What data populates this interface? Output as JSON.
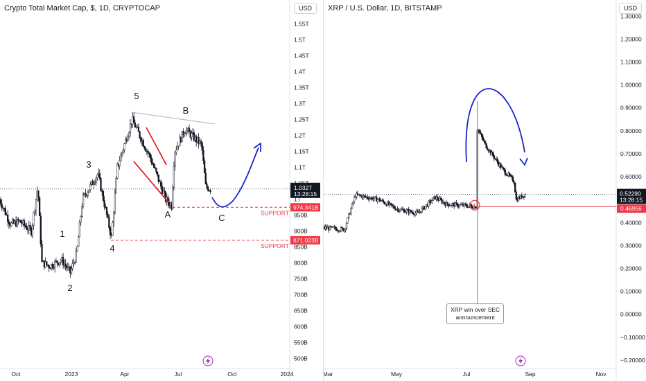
{
  "left": {
    "title": "Crypto Total Market Cap, $, 1D, CRYPTOCAP",
    "currency": "USD",
    "y_ticks": [
      "1.55T",
      "1.5T",
      "1.45T",
      "1.4T",
      "1.35T",
      "1.3T",
      "1.25T",
      "1.2T",
      "1.15T",
      "1.1T",
      "1.05T",
      "1T",
      "950B",
      "900B",
      "850B",
      "800B",
      "750B",
      "700B",
      "650B",
      "600B",
      "550B",
      "500B"
    ],
    "x_ticks": [
      "Oct",
      "2023",
      "Apr",
      "Jul",
      "Oct",
      "2024"
    ],
    "last_price": "1.032T",
    "countdown": "13:28:15",
    "support_1": "974.341B",
    "support_2": "871.023B",
    "support_label": "SUPPORT",
    "waves": [
      "1",
      "2",
      "3",
      "4",
      "5",
      "A",
      "B",
      "C"
    ]
  },
  "right": {
    "title": "XRP / U.S. Dollar, 1D, BITSTAMP",
    "currency": "USD",
    "y_ticks": [
      "1.30000",
      "1.20000",
      "1.10000",
      "1.00000",
      "0.90000",
      "0.80000",
      "0.70000",
      "0.60000",
      "0.50000",
      "0.40000",
      "0.30000",
      "0.20000",
      "0.10000",
      "0.00000",
      "−0.10000",
      "−0.20000"
    ],
    "x_ticks": [
      "Mar",
      "May",
      "Jul",
      "Sep",
      "Nov"
    ],
    "last_price": "0.52290",
    "countdown": "13:28:15",
    "level": "0.46956",
    "note_line1": "XRP win over SEC",
    "note_line2": "announcement"
  },
  "colors": {
    "up": "#131722",
    "down": "#131722",
    "support": "#f23645",
    "arrow": "#1a23c8",
    "wedge": "#e0202a"
  },
  "icons": [
    "lightning-icon"
  ],
  "chart_data": [
    {
      "type": "candlestick",
      "title": "Crypto Total Market Cap, $, 1D, CRYPTOCAP",
      "ylabel": "USD",
      "ylim": [
        480000000000,
        1580000000000
      ],
      "x_ticks": [
        "Oct",
        "2023",
        "Apr",
        "Jul",
        "Oct",
        "2024"
      ],
      "close_path": [
        {
          "x": "2022-09-01",
          "y": 1000000000000
        },
        {
          "x": "2022-09-20",
          "y": 920000000000
        },
        {
          "x": "2022-10-05",
          "y": 930000000000
        },
        {
          "x": "2022-10-25",
          "y": 900000000000
        },
        {
          "x": "2022-11-05",
          "y": 1040000000000
        },
        {
          "x": "2022-11-12",
          "y": 800000000000
        },
        {
          "x": "2022-11-25",
          "y": 790000000000
        },
        {
          "x": "2022-12-15",
          "y": 810000000000
        },
        {
          "x": "2022-12-30",
          "y": 770000000000
        },
        {
          "x": "2023-01-10",
          "y": 830000000000
        },
        {
          "x": "2023-01-20",
          "y": 1000000000000
        },
        {
          "x": "2023-02-15",
          "y": 1080000000000
        },
        {
          "x": "2023-03-10",
          "y": 880000000000
        },
        {
          "x": "2023-03-20",
          "y": 1100000000000
        },
        {
          "x": "2023-04-14",
          "y": 1250000000000
        },
        {
          "x": "2023-05-15",
          "y": 1130000000000
        },
        {
          "x": "2023-06-10",
          "y": 1000000000000
        },
        {
          "x": "2023-06-20",
          "y": 980000000000
        },
        {
          "x": "2023-06-25",
          "y": 1150000000000
        },
        {
          "x": "2023-07-13",
          "y": 1220000000000
        },
        {
          "x": "2023-08-10",
          "y": 1170000000000
        },
        {
          "x": "2023-08-17",
          "y": 1040000000000
        },
        {
          "x": "2023-08-25",
          "y": 1032000000000
        }
      ],
      "last": 1032000000000,
      "support_levels": [
        974341000000,
        871023000000
      ],
      "wave_labels": [
        "1",
        "2",
        "3",
        "4",
        "5",
        "A",
        "B",
        "C"
      ]
    },
    {
      "type": "candlestick",
      "title": "XRP / U.S. Dollar, 1D, BITSTAMP",
      "ylabel": "USD",
      "ylim": [
        -0.21,
        1.32
      ],
      "x_ticks": [
        "Mar",
        "May",
        "Jul",
        "Sep",
        "Nov"
      ],
      "close_path": [
        {
          "x": "2023-02-15",
          "y": 0.38
        },
        {
          "x": "2023-03-15",
          "y": 0.37
        },
        {
          "x": "2023-03-25",
          "y": 0.52
        },
        {
          "x": "2023-04-15",
          "y": 0.5
        },
        {
          "x": "2023-05-01",
          "y": 0.46
        },
        {
          "x": "2023-05-20",
          "y": 0.44
        },
        {
          "x": "2023-06-05",
          "y": 0.51
        },
        {
          "x": "2023-06-15",
          "y": 0.48
        },
        {
          "x": "2023-07-12",
          "y": 0.47
        },
        {
          "x": "2023-07-13",
          "y": 0.81
        },
        {
          "x": "2023-07-20",
          "y": 0.74
        },
        {
          "x": "2023-08-05",
          "y": 0.63
        },
        {
          "x": "2023-08-15",
          "y": 0.58
        },
        {
          "x": "2023-08-17",
          "y": 0.5
        },
        {
          "x": "2023-08-25",
          "y": 0.5229
        }
      ],
      "last": 0.5229,
      "level": 0.46956,
      "annotation": "XRP win over SEC announcement"
    }
  ]
}
